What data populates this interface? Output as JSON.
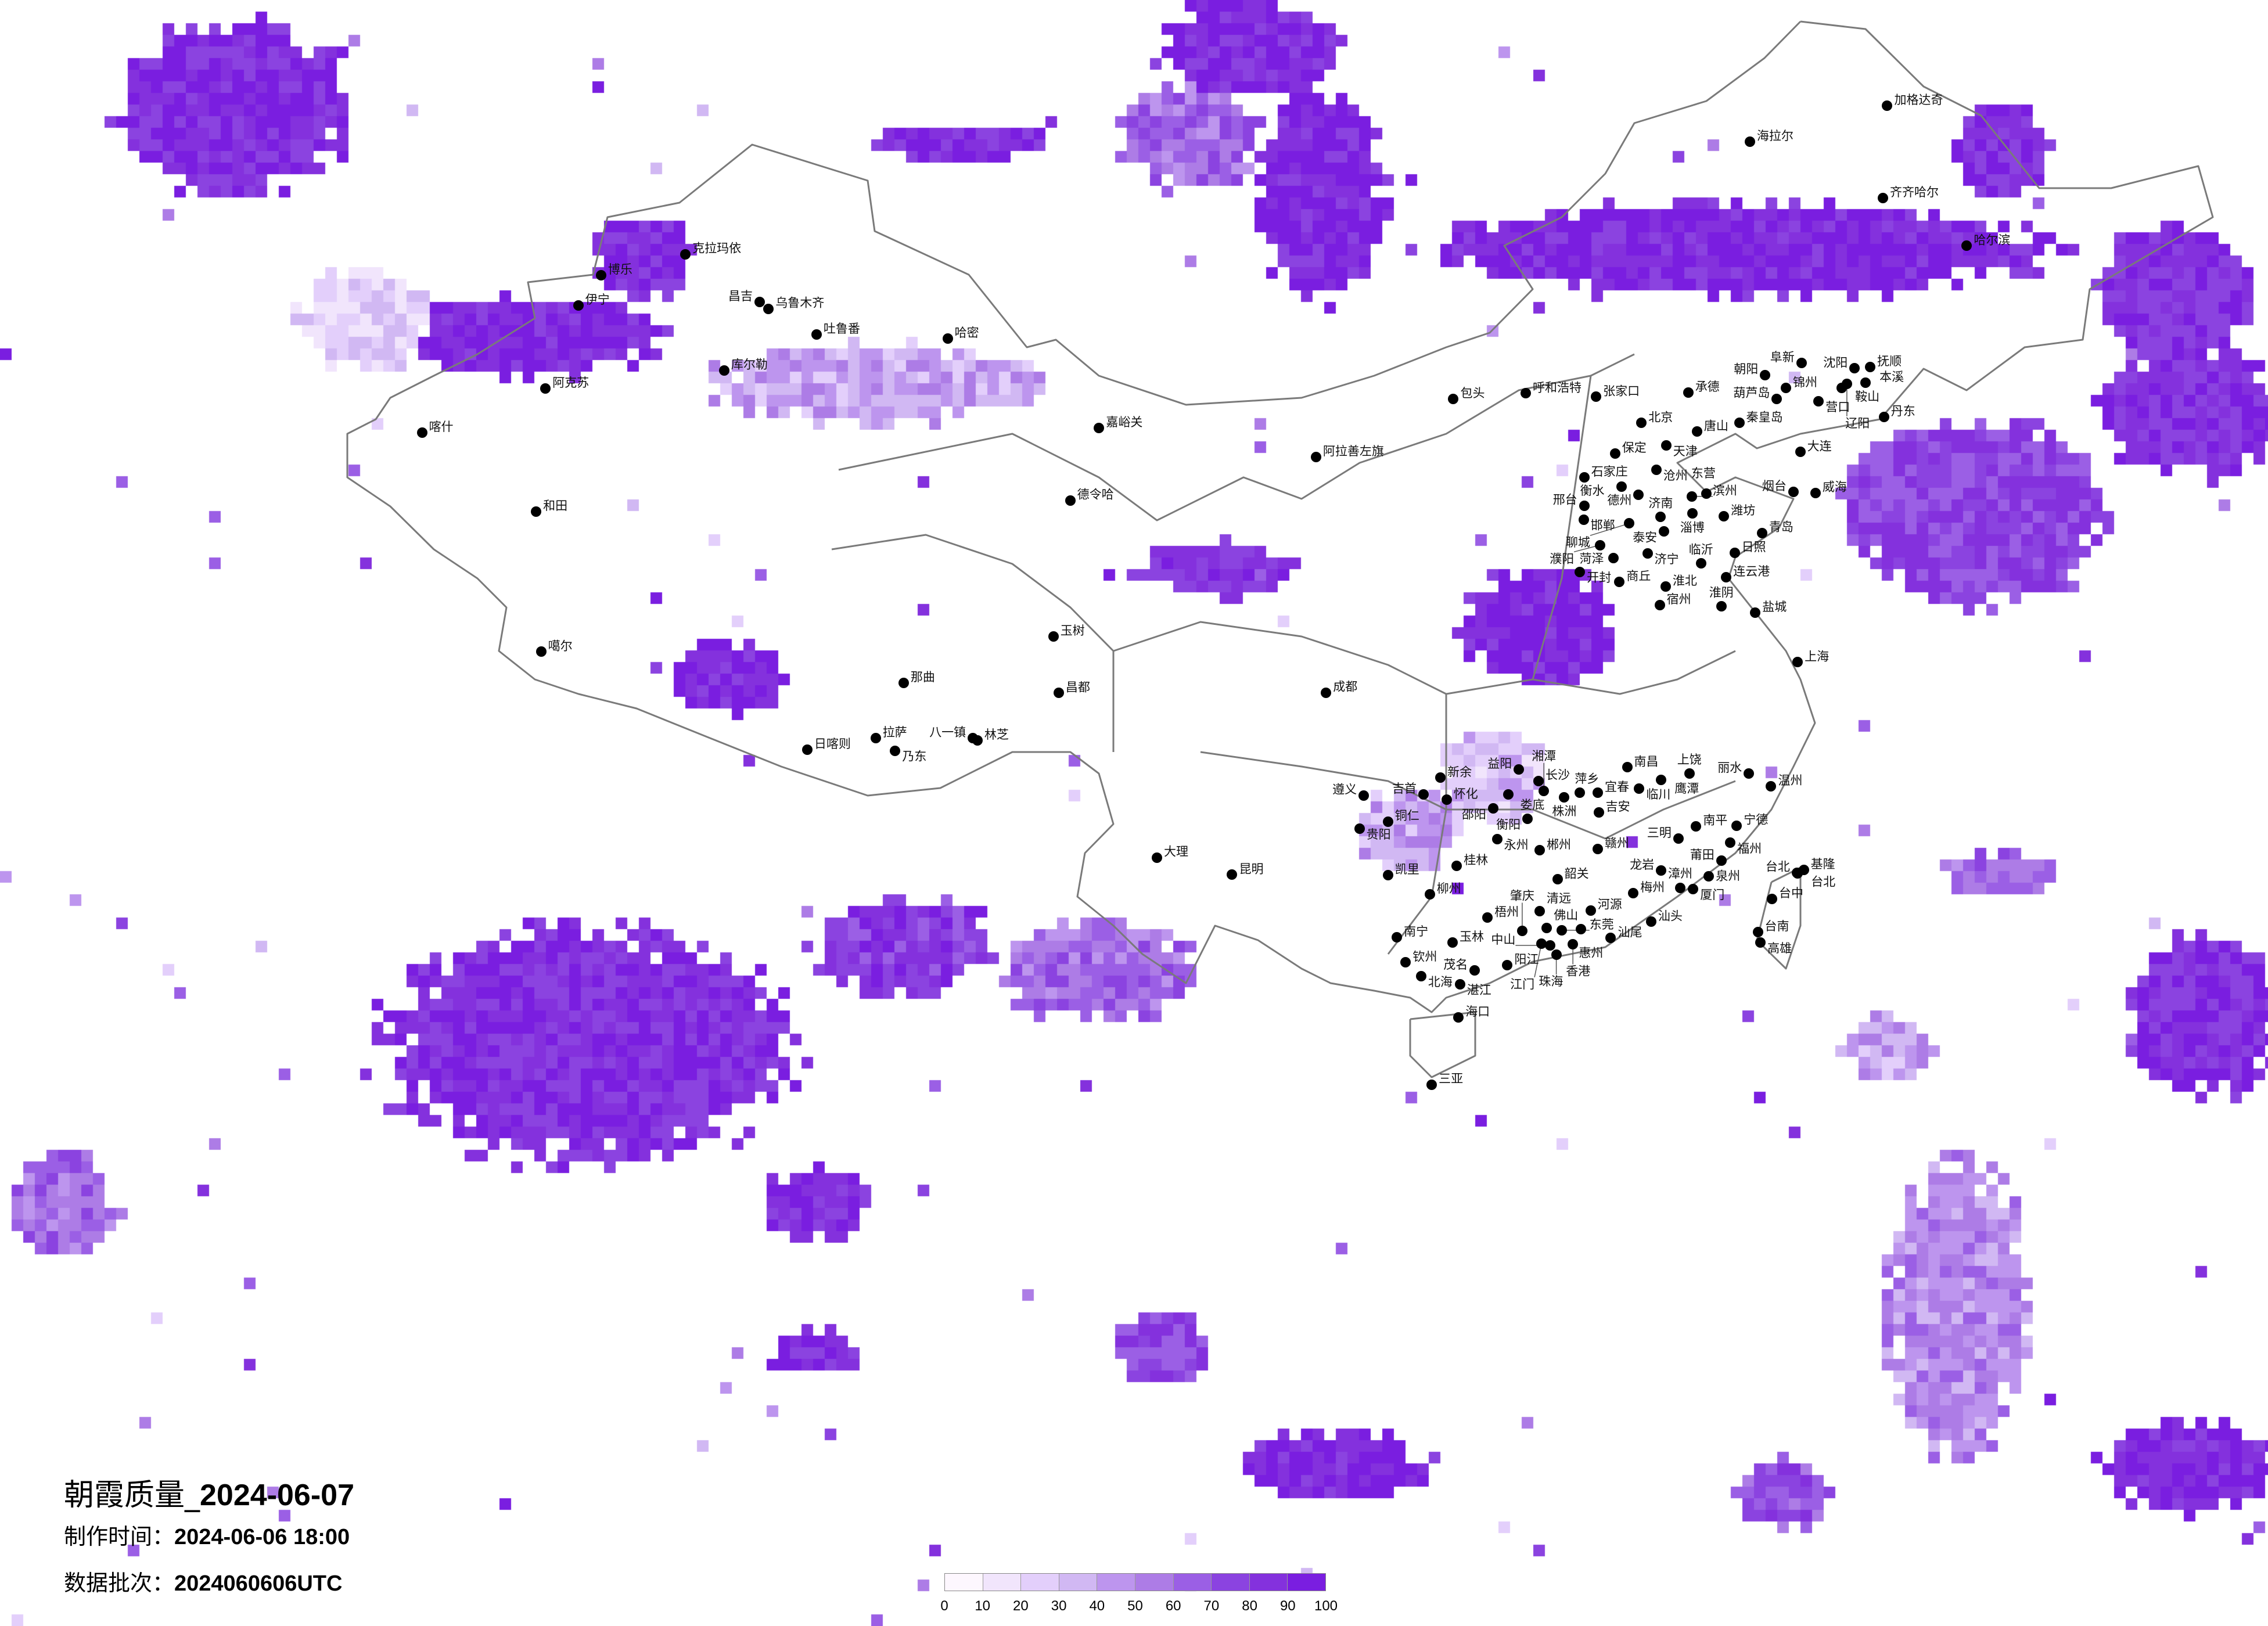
{
  "title": {
    "prefix": "朝霞质量_",
    "date": "2024-06-07"
  },
  "production_time": {
    "label": "制作时间：",
    "value": "2024-06-06 18:00"
  },
  "data_batch": {
    "label": "数据批次：",
    "value": "2024060606UTC"
  },
  "legend": {
    "ticks": [
      "0",
      "10",
      "20",
      "30",
      "40",
      "50",
      "60",
      "70",
      "80",
      "90",
      "100"
    ],
    "colors": [
      "#fdf7fe",
      "#f1e5fc",
      "#e3cffb",
      "#d1b8f3",
      "#bd95ee",
      "#ad7ce6",
      "#9b5fe5",
      "#8b43e0",
      "#8431dd",
      "#7a1ee0"
    ]
  },
  "border_color": "#7a7a7a",
  "cities": {
    "north_china": [
      "北京",
      "天津",
      "张家口",
      "承德",
      "唐山",
      "秦皇岛",
      "保定",
      "石家庄",
      "沧州",
      "济南",
      "青岛",
      "烟台",
      "威海",
      "大连",
      "沈阳",
      "抚顺",
      "丹东",
      "锦州",
      "营口",
      "朝阳",
      "阜新",
      "鞍山",
      "本溪",
      "潍坊",
      "淄博",
      "泰安",
      "济宁",
      "临沂",
      "日照",
      "连云港",
      "商丘",
      "开封",
      "宿州",
      "淮阴",
      "盐城",
      "德州",
      "衡水",
      "邢台",
      "邯郸",
      "聊城",
      "菏泽",
      "濮阳",
      "滨州",
      "东营",
      "葫芦岛",
      "辽阳",
      "淮北"
    ],
    "south_china": [
      "长沙",
      "南昌",
      "株洲",
      "衡阳",
      "益阳",
      "怀化",
      "邵阳",
      "永州",
      "郴州",
      "赣州",
      "吉安",
      "桂林",
      "柳州",
      "南宁",
      "梧州",
      "玉林",
      "钦州",
      "北海",
      "湛江",
      "茂名",
      "阳江",
      "海口",
      "佛山",
      "东莞",
      "惠州",
      "香港",
      "珠海",
      "中山",
      "江门",
      "肇庆",
      "清远",
      "韶关",
      "河源",
      "汕头",
      "汕尾",
      "梅州",
      "厦门",
      "漳州",
      "泉州",
      "莆田",
      "福州",
      "宁德",
      "南平",
      "三明",
      "龙岩",
      "温州",
      "丽水",
      "台北",
      "基隆",
      "台中",
      "台南",
      "高雄",
      "临川",
      "鹰潭",
      "上饶",
      "娄底",
      "湘潭",
      "萍乡",
      "宜春",
      "新余",
      "吉首",
      "铜仁",
      "凯里",
      "河池"
    ],
    "west_china": [
      "克拉玛依",
      "博乐",
      "伊宁",
      "昌吉",
      "乌鲁木齐",
      "吐鲁番",
      "哈密",
      "库尔勒",
      "阿克苏",
      "喀什",
      "和田",
      "噶尔",
      "那曲",
      "拉萨",
      "日喀则",
      "林芝",
      "乃东",
      "玉树",
      "昌都",
      "八一镇"
    ],
    "other": [
      "齐齐哈尔",
      "哈尔滨",
      "海拉尔",
      "加格达奇",
      "呼和浩特",
      "包头",
      "阿拉善左旗",
      "德令哈",
      "嘉峪关",
      "昆明",
      "贵阳",
      "遵义",
      "大理",
      "成都",
      "上海",
      "三亚",
      "台北"
    ]
  }
}
